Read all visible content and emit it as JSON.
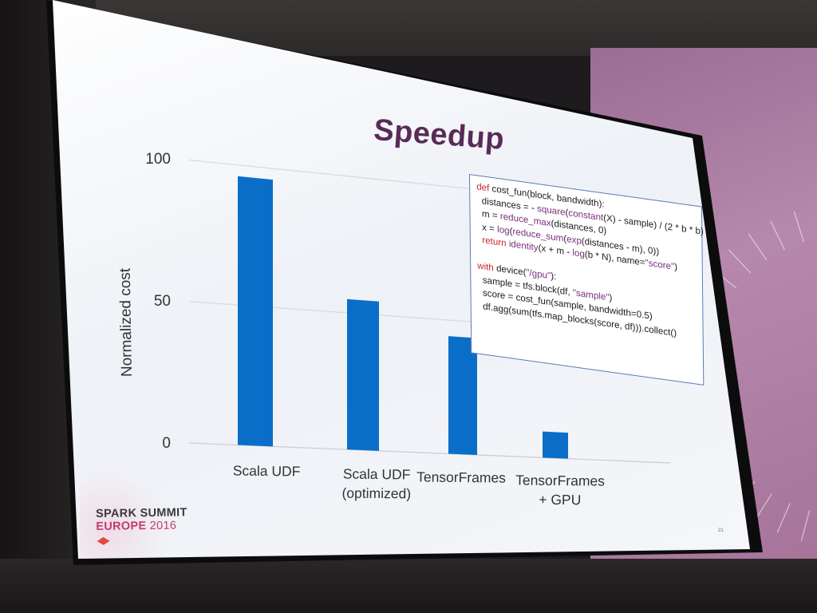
{
  "slide": {
    "title": "Speedup",
    "page_number": "21"
  },
  "chart_data": {
    "type": "bar",
    "ylabel": "Normalized cost",
    "xlabel": "",
    "ylim": [
      0,
      100
    ],
    "yticks": [
      0,
      50,
      100
    ],
    "ytick_labels": [
      "0",
      "50",
      "100"
    ],
    "categories": [
      [
        "Scala UDF"
      ],
      [
        "Scala UDF",
        "(optimized)"
      ],
      [
        "TensorFrames"
      ],
      [
        "TensorFrames",
        "+ GPU"
      ]
    ],
    "values": [
      96,
      55,
      44,
      10
    ],
    "grid": true,
    "bar_color": "#0a6ec9"
  },
  "code": {
    "lines": [
      [
        {
          "t": "def ",
          "c": "kw"
        },
        {
          "t": "cost_fun(block, bandwidth):",
          "c": ""
        }
      ],
      [
        {
          "t": "  distances = - ",
          "c": ""
        },
        {
          "t": "square",
          "c": "fn"
        },
        {
          "t": "(",
          "c": ""
        },
        {
          "t": "constant",
          "c": "fn"
        },
        {
          "t": "(X) - sample) / (2 * b * b)",
          "c": ""
        }
      ],
      [
        {
          "t": "  m = ",
          "c": ""
        },
        {
          "t": "reduce_max",
          "c": "fn"
        },
        {
          "t": "(distances, 0)",
          "c": ""
        }
      ],
      [
        {
          "t": "  x = ",
          "c": ""
        },
        {
          "t": "log",
          "c": "fn"
        },
        {
          "t": "(",
          "c": ""
        },
        {
          "t": "reduce_sum",
          "c": "fn"
        },
        {
          "t": "(",
          "c": ""
        },
        {
          "t": "exp",
          "c": "fn"
        },
        {
          "t": "(distances - m), 0))",
          "c": ""
        }
      ],
      [
        {
          "t": "  ",
          "c": ""
        },
        {
          "t": "return ",
          "c": "kw"
        },
        {
          "t": "identity",
          "c": "fn"
        },
        {
          "t": "(x + m - ",
          "c": ""
        },
        {
          "t": "log",
          "c": "fn"
        },
        {
          "t": "(b * N), name=",
          "c": ""
        },
        {
          "t": "\"score\"",
          "c": "str"
        },
        {
          "t": ")",
          "c": ""
        }
      ],
      [
        {
          "t": " ",
          "c": ""
        }
      ],
      [
        {
          "t": "with ",
          "c": "kw"
        },
        {
          "t": "device(",
          "c": ""
        },
        {
          "t": "\"/gpu\"",
          "c": "str"
        },
        {
          "t": "):",
          "c": ""
        }
      ],
      [
        {
          "t": "  sample = tfs.block(df, ",
          "c": ""
        },
        {
          "t": "\"sample\"",
          "c": "str"
        },
        {
          "t": ")",
          "c": ""
        }
      ],
      [
        {
          "t": "  score = cost_fun(sample, bandwidth=0.5)",
          "c": ""
        }
      ],
      [
        {
          "t": "  df.agg(sum(tfs.map_blocks(score, df))).collect()",
          "c": ""
        }
      ]
    ]
  },
  "logo": {
    "line1": "SPARK SUMMIT",
    "line2": "EUROPE",
    "year": "2016"
  },
  "colors": {
    "title": "#5a2b57",
    "bar": "#0a6ec9",
    "keyword": "#c6282c",
    "function": "#7a2f7f",
    "logo_accent": "#c23a6c"
  }
}
